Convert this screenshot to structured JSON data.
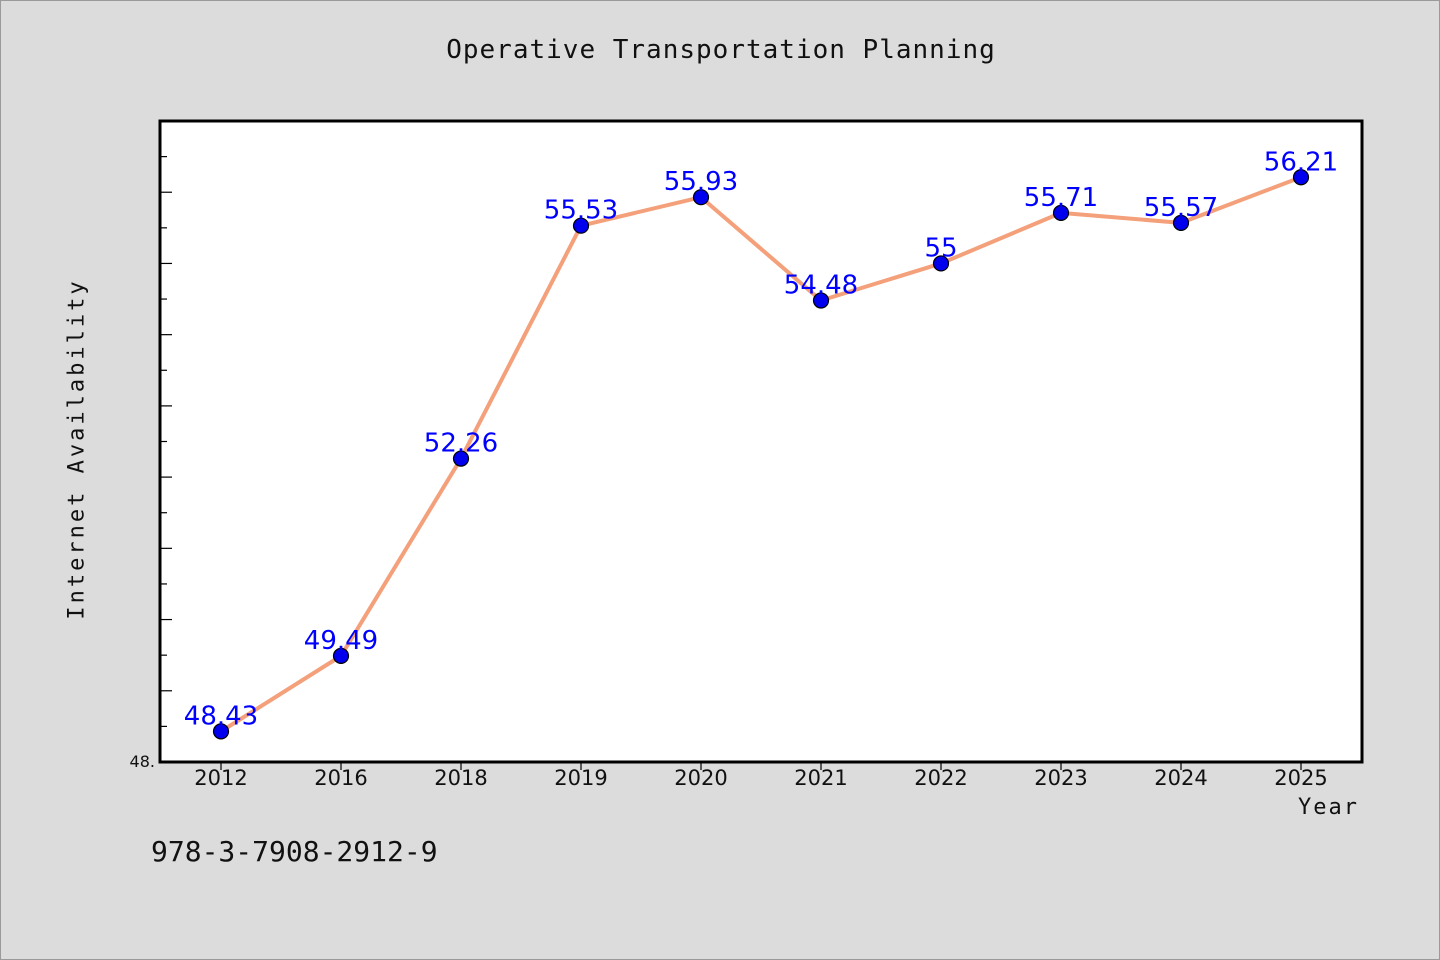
{
  "chart_data": {
    "type": "line",
    "title": "Operative Transportation Planning",
    "xlabel": "Year",
    "ylabel": "Internet Availability",
    "categories": [
      "2012",
      "2016",
      "2018",
      "2019",
      "2020",
      "2021",
      "2022",
      "2023",
      "2024",
      "2025"
    ],
    "series": [
      {
        "values": [
          48.43,
          49.49,
          52.26,
          55.53,
          55.93,
          54.48,
          55,
          55.71,
          55.57,
          56.21
        ],
        "labels": [
          "48.43",
          "49.49",
          "52.26",
          "55.53",
          "55.93",
          "54.48",
          "55",
          "55.71",
          "55.57",
          "56.21"
        ],
        "line_color": "#f4a07a",
        "marker_color": "#0000ee"
      }
    ],
    "y_min_label": "48.",
    "ylim": [
      48,
      57
    ],
    "grid": false,
    "legend": "none"
  },
  "footer": {
    "id_text": "978-3-7908-2912-9"
  },
  "colors": {
    "background": "#dcdcdc",
    "plot_background": "#ffffff",
    "data_label": "#0000ff"
  }
}
